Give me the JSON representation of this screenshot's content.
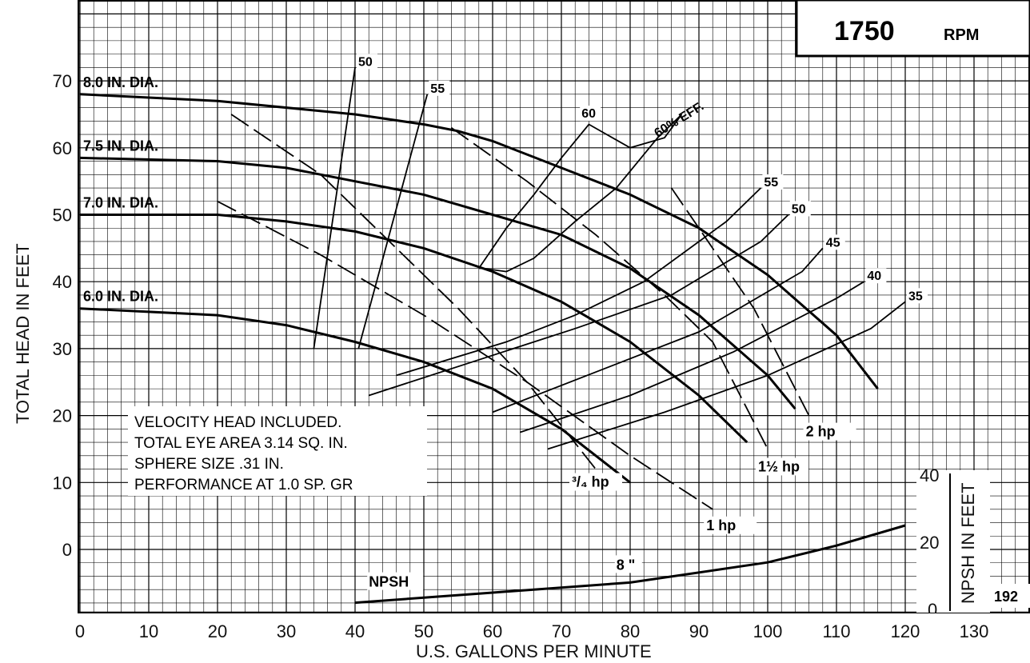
{
  "chart_data": {
    "type": "line",
    "title": "",
    "speed": {
      "value": "1750",
      "unit": "RPM"
    },
    "xlabel": "U.S. GALLONS PER MINUTE",
    "ylabel": "TOTAL HEAD IN FEET",
    "y2label": "NPSH IN FEET",
    "xlim": [
      0,
      130
    ],
    "ylim": [
      -10,
      80
    ],
    "y2lim": [
      0,
      50
    ],
    "grid": true,
    "x_ticks": [
      "0",
      "10",
      "20",
      "30",
      "40",
      "50",
      "60",
      "70",
      "80",
      "90",
      "100",
      "110",
      "120",
      "130"
    ],
    "y_ticks": [
      "0",
      "10",
      "20",
      "30",
      "40",
      "50",
      "60",
      "70"
    ],
    "y2_ticks": [
      "0",
      "20",
      "40"
    ],
    "notes": [
      "VELOCITY HEAD INCLUDED.",
      "TOTAL EYE AREA 3.14 SQ. IN.",
      "SPHERE SIZE .31 IN.",
      "PERFORMANCE AT 1.0 SP. GR"
    ],
    "figure_number": "192",
    "impeller_curves": [
      {
        "label": "8.0 IN. DIA.",
        "x": [
          0,
          20,
          40,
          50,
          55,
          60,
          70,
          80,
          90,
          100,
          110,
          116
        ],
        "y": [
          68,
          67,
          65,
          63.5,
          62.5,
          61,
          57,
          53,
          48,
          41,
          32,
          24
        ]
      },
      {
        "label": "7.5 IN. DIA.",
        "x": [
          0,
          20,
          30,
          40,
          50,
          60,
          70,
          80,
          90,
          100,
          104
        ],
        "y": [
          58.5,
          58,
          57,
          55,
          53,
          50,
          47,
          42,
          35,
          26,
          21
        ]
      },
      {
        "label": "7.0 IN. DIA.",
        "x": [
          0,
          20,
          30,
          40,
          50,
          60,
          70,
          80,
          90,
          97
        ],
        "y": [
          50,
          50,
          49,
          47.5,
          45,
          41.5,
          37,
          31,
          23,
          16
        ]
      },
      {
        "label": "6.0 IN. DIA.",
        "x": [
          0,
          20,
          30,
          40,
          50,
          60,
          70,
          80
        ],
        "y": [
          36,
          35,
          33.5,
          31,
          28,
          24,
          18,
          10
        ]
      }
    ],
    "efficiency_lines": [
      {
        "label": "50",
        "x": [
          34,
          40
        ],
        "y": [
          30,
          72
        ]
      },
      {
        "label": "55",
        "x": [
          40.5,
          50.5
        ],
        "y": [
          30,
          68
        ]
      },
      {
        "label": "55",
        "x": [
          46,
          62,
          72,
          82,
          94,
          99
        ],
        "y": [
          26,
          31,
          35,
          40,
          49,
          54
        ]
      },
      {
        "label": "50",
        "x": [
          42,
          60,
          72,
          86,
          99,
          103
        ],
        "y": [
          23,
          29,
          33,
          38,
          46,
          50
        ]
      },
      {
        "label": "45",
        "x": [
          60,
          75,
          90,
          105,
          108
        ],
        "y": [
          20.5,
          26.5,
          32.5,
          41.5,
          45
        ]
      },
      {
        "label": "40",
        "x": [
          64,
          80,
          95,
          110,
          114
        ],
        "y": [
          17.5,
          23,
          29.5,
          37.5,
          40
        ]
      },
      {
        "label": "35",
        "x": [
          68,
          85,
          100,
          115,
          120
        ],
        "y": [
          15,
          20.5,
          26,
          33,
          37
        ]
      }
    ],
    "efficiency_60_island": {
      "label": "60% EFF.",
      "label_60": "60",
      "x": [
        58,
        62,
        66,
        70,
        74,
        80,
        85,
        87.5,
        84,
        78,
        72,
        66,
        62,
        58.5,
        58
      ],
      "y": [
        42,
        48,
        53,
        58.5,
        63.5,
        60,
        61.5,
        65,
        61.5,
        54,
        49,
        43.5,
        41.5,
        42,
        42
      ]
    },
    "horsepower_lines": [
      {
        "label": "³/₄ hp",
        "x": [
          22,
          35,
          45,
          55,
          65,
          75
        ],
        "y": [
          65,
          56,
          46,
          36,
          25,
          12
        ]
      },
      {
        "label": "1 hp",
        "x": [
          20,
          35,
          50,
          65,
          80,
          92
        ],
        "y": [
          52,
          44,
          35,
          25,
          14,
          6
        ]
      },
      {
        "label": "1½ hp",
        "x": [
          54,
          65,
          75,
          85,
          92,
          100
        ],
        "y": [
          63,
          55,
          47,
          38,
          31,
          15
        ]
      },
      {
        "label": "2 hp",
        "x": [
          86,
          92,
          98,
          106
        ],
        "y": [
          54,
          45,
          36,
          20
        ]
      }
    ],
    "npsh_curve": {
      "label": "NPSH",
      "impeller_label": "8 \"",
      "x": [
        40,
        60,
        80,
        100,
        110,
        120
      ],
      "y": [
        2,
        5,
        8,
        14,
        19,
        25
      ]
    }
  }
}
